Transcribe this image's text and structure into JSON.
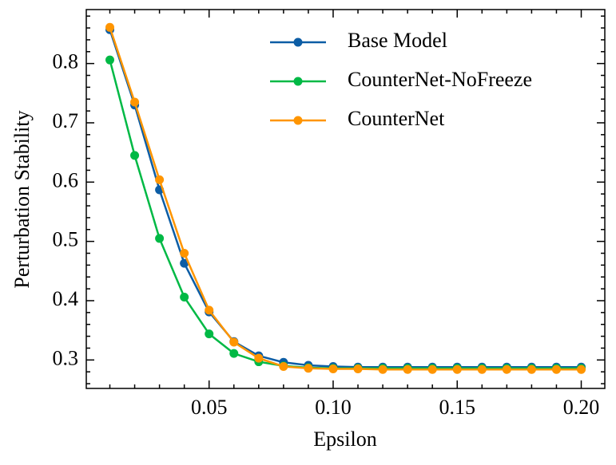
{
  "chart_data": {
    "type": "line",
    "x_label": "Epsilon",
    "y_label": "Perturbation Stability",
    "x": [
      0.01,
      0.02,
      0.03,
      0.04,
      0.05,
      0.06,
      0.07,
      0.08,
      0.09,
      0.1,
      0.11,
      0.12,
      0.13,
      0.14,
      0.15,
      0.16,
      0.17,
      0.18,
      0.19,
      0.2
    ],
    "series": [
      {
        "name": "Base Model",
        "color": "#0C5DA5",
        "values": [
          0.857,
          0.73,
          0.587,
          0.463,
          0.381,
          0.331,
          0.307,
          0.296,
          0.291,
          0.289,
          0.288,
          0.288,
          0.288,
          0.288,
          0.288,
          0.288,
          0.288,
          0.288,
          0.288,
          0.288
        ]
      },
      {
        "name": "CounterNet-NoFreeze",
        "color": "#00B945",
        "values": [
          0.806,
          0.645,
          0.505,
          0.406,
          0.344,
          0.311,
          0.297,
          0.29,
          0.287,
          0.286,
          0.286,
          0.286,
          0.286,
          0.286,
          0.286,
          0.286,
          0.286,
          0.286,
          0.286,
          0.286
        ]
      },
      {
        "name": "CounterNet",
        "color": "#FF9500",
        "values": [
          0.861,
          0.735,
          0.604,
          0.48,
          0.384,
          0.33,
          0.303,
          0.289,
          0.286,
          0.285,
          0.285,
          0.284,
          0.284,
          0.284,
          0.284,
          0.284,
          0.284,
          0.284,
          0.284,
          0.284
        ]
      }
    ],
    "xlim": [
      0.0005,
      0.2095
    ],
    "ylim": [
      0.252,
      0.891
    ],
    "xticks": [
      {
        "value": 0.05,
        "label": "0.05"
      },
      {
        "value": 0.1,
        "label": "0.10"
      },
      {
        "value": 0.15,
        "label": "0.15"
      },
      {
        "value": 0.2,
        "label": "0.20"
      }
    ],
    "yticks": [
      0.3,
      0.4,
      0.5,
      0.6,
      0.7,
      0.8
    ],
    "xminorticks": [
      0.01,
      0.02,
      0.03,
      0.04,
      0.06,
      0.07,
      0.08,
      0.09,
      0.11,
      0.12,
      0.13,
      0.14,
      0.16,
      0.17,
      0.18,
      0.19
    ],
    "yminorticks": [
      0.26,
      0.28,
      0.32,
      0.34,
      0.36,
      0.38,
      0.42,
      0.44,
      0.46,
      0.48,
      0.52,
      0.54,
      0.56,
      0.58,
      0.62,
      0.64,
      0.66,
      0.68,
      0.72,
      0.74,
      0.76,
      0.78,
      0.82,
      0.84,
      0.86,
      0.88
    ],
    "legend": "upper right"
  }
}
